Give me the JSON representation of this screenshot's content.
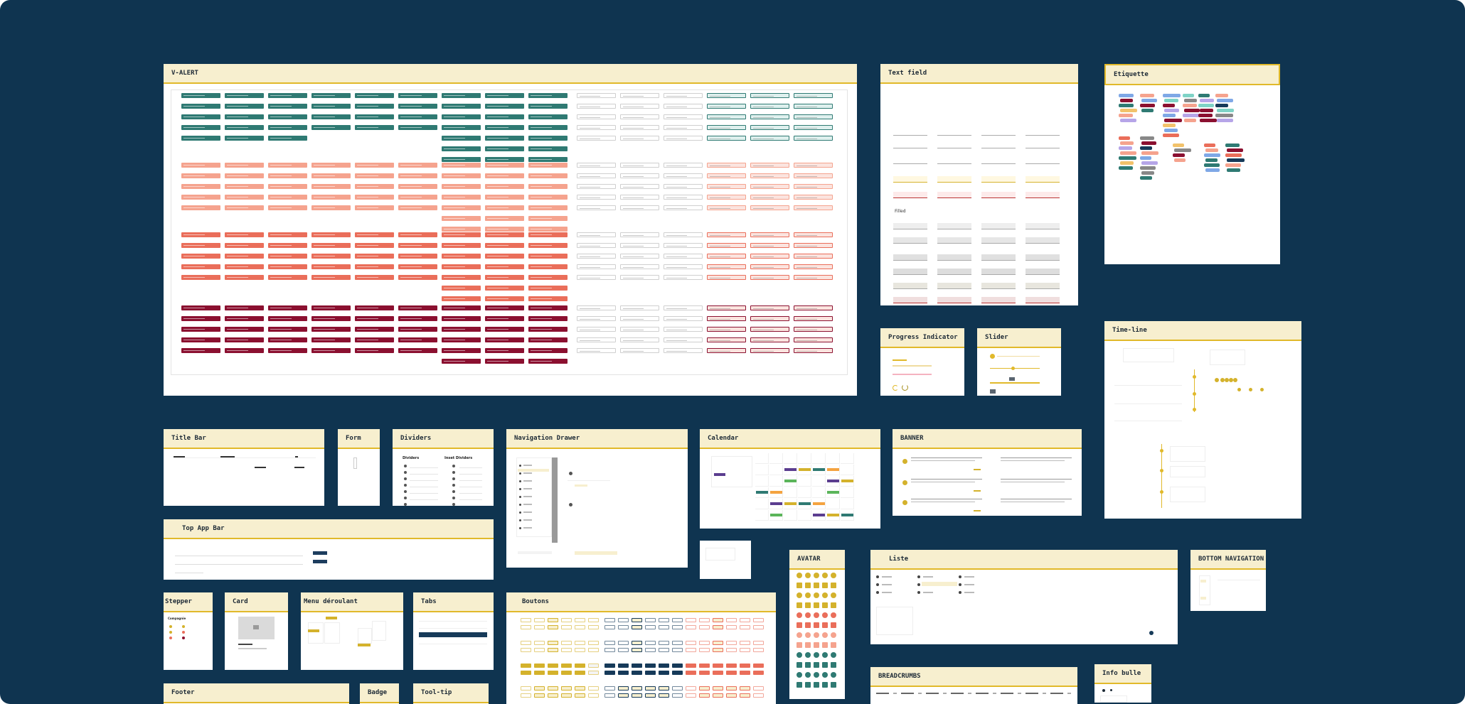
{
  "canvas": {
    "background": "#0f3450"
  },
  "colors": {
    "header_bg": "#f7efcf",
    "header_border": "#e1b92a",
    "teal": "#2f7a73",
    "salmon_light": "#f5a38e",
    "salmon": "#ea6e5a",
    "crimson": "#8b1030",
    "mustard": "#d4b22c",
    "navy": "#163a59"
  },
  "frames": [
    {
      "key": "v_alert",
      "title": "V-ALERT"
    },
    {
      "key": "text_field",
      "title": "Text field",
      "subtitle": "Filled"
    },
    {
      "key": "etiquette",
      "title": "Etiquette"
    },
    {
      "key": "progress_indicator",
      "title": "Progress Indicator"
    },
    {
      "key": "slider",
      "title": "Slider"
    },
    {
      "key": "timeline",
      "title": "Time-line"
    },
    {
      "key": "title_bar",
      "title": "Title Bar"
    },
    {
      "key": "form",
      "title": "Form"
    },
    {
      "key": "dividers",
      "title": "Dividers",
      "col_a": "Dividers",
      "col_b": "Inset Dividers"
    },
    {
      "key": "navigation_drawer",
      "title": "Navigation Drawer"
    },
    {
      "key": "calendar",
      "title": "Calendar"
    },
    {
      "key": "banner",
      "title": "BANNER"
    },
    {
      "key": "top_app_bar",
      "title": "Top App Bar"
    },
    {
      "key": "avatar",
      "title": "AVATAR"
    },
    {
      "key": "liste",
      "title": "Liste"
    },
    {
      "key": "bottom_navigation",
      "title": "BOTTOM NAVIGATION"
    },
    {
      "key": "stepper",
      "title": "Stepper",
      "label": "Compagnie"
    },
    {
      "key": "card",
      "title": "Card"
    },
    {
      "key": "menu_deroulant",
      "title": "Menu déroulant"
    },
    {
      "key": "tabs",
      "title": "Tabs"
    },
    {
      "key": "boutons",
      "title": "Boutons"
    },
    {
      "key": "breadcrumbs",
      "title": "BREADCRUMBS"
    },
    {
      "key": "info_bulle",
      "title": "Info bulle"
    },
    {
      "key": "footer",
      "title": "Footer"
    },
    {
      "key": "badge",
      "title": "Badge"
    },
    {
      "key": "tooltip",
      "title": "Tool-tip"
    }
  ]
}
